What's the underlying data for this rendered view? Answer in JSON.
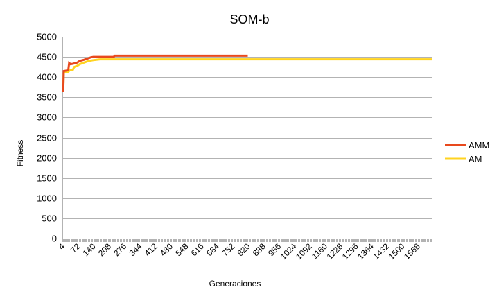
{
  "chart_data": {
    "type": "line",
    "title": "SOM-b",
    "xlabel": "Generaciones",
    "ylabel": "Fitness",
    "ylim": [
      0,
      5000
    ],
    "yticks": [
      "0",
      "500",
      "1000",
      "1500",
      "2000",
      "2500",
      "3000",
      "3500",
      "4000",
      "4500",
      "5000"
    ],
    "xlim": [
      4,
      1630
    ],
    "xticks": [
      "4",
      "72",
      "140",
      "208",
      "276",
      "344",
      "412",
      "480",
      "548",
      "616",
      "684",
      "752",
      "820",
      "888",
      "956",
      "1024",
      "1092",
      "1160",
      "1228",
      "1296",
      "1364",
      "1432",
      "1500",
      "1568"
    ],
    "grid": "horizontal",
    "legend": "right",
    "series": [
      {
        "name": "AMM",
        "color": "#e8491d",
        "points": [
          [
            4,
            3660
          ],
          [
            8,
            3660
          ],
          [
            10,
            4150
          ],
          [
            30,
            4170
          ],
          [
            34,
            4350
          ],
          [
            40,
            4320
          ],
          [
            50,
            4330
          ],
          [
            64,
            4350
          ],
          [
            70,
            4360
          ],
          [
            80,
            4400
          ],
          [
            100,
            4430
          ],
          [
            110,
            4450
          ],
          [
            130,
            4490
          ],
          [
            140,
            4500
          ],
          [
            230,
            4500
          ],
          [
            234,
            4530
          ],
          [
            820,
            4530
          ]
        ]
      },
      {
        "name": "AM",
        "color": "#ffd320",
        "points": [
          [
            4,
            3680
          ],
          [
            8,
            3680
          ],
          [
            10,
            4130
          ],
          [
            30,
            4130
          ],
          [
            36,
            4170
          ],
          [
            50,
            4180
          ],
          [
            56,
            4250
          ],
          [
            70,
            4280
          ],
          [
            80,
            4320
          ],
          [
            100,
            4360
          ],
          [
            120,
            4400
          ],
          [
            140,
            4420
          ],
          [
            170,
            4440
          ],
          [
            300,
            4440
          ],
          [
            1630,
            4440
          ]
        ]
      }
    ]
  }
}
